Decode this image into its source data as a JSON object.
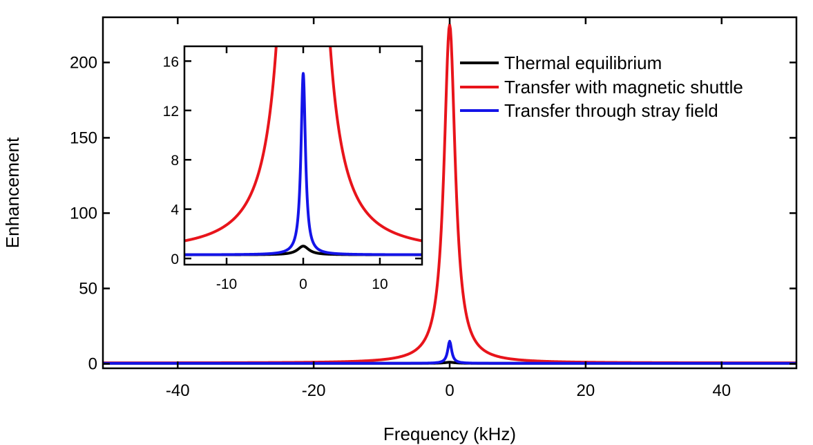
{
  "chart_data": {
    "main": {
      "type": "line",
      "xlabel": "Frequency (kHz)",
      "ylabel": "Enhancement",
      "xlim": [
        -51,
        51
      ],
      "ylim": [
        -3,
        230
      ],
      "xticks": [
        -40,
        -20,
        0,
        20,
        40
      ],
      "xtick_labels": [
        "-40",
        "-20",
        "0",
        "20",
        "40"
      ],
      "yticks": [
        0,
        50,
        100,
        150,
        200
      ],
      "ytick_labels": [
        "0",
        "50",
        "100",
        "150",
        "200"
      ],
      "series": [
        {
          "name": "Thermal equilibrium",
          "color": "#000000",
          "peak": 1.0,
          "gamma": 0.9,
          "base": 0.3
        },
        {
          "name": "Transfer with magnetic shuttle",
          "color": "#e8141b",
          "peak": 225,
          "gamma": 1.0,
          "base": 0.5
        },
        {
          "name": "Transfer through stray field",
          "color": "#1414e8",
          "peak": 15,
          "gamma": 0.35,
          "base": 0.3
        }
      ],
      "legend_position": "top-right"
    },
    "inset": {
      "type": "line",
      "xlim": [
        -15.5,
        15.5
      ],
      "ylim": [
        -0.5,
        17.2
      ],
      "xticks": [
        -10,
        0,
        10
      ],
      "xtick_labels": [
        "-10",
        "0",
        "10"
      ],
      "yticks": [
        0,
        4,
        8,
        12,
        16
      ],
      "ytick_labels": [
        "0",
        "4",
        "8",
        "12",
        "16"
      ],
      "series": [
        {
          "name": "Thermal equilibrium",
          "color": "#000000",
          "peak": 1.0,
          "gamma": 0.9,
          "base": 0.3
        },
        {
          "name": "Transfer with magnetic shuttle",
          "color": "#e8141b",
          "peak": 225,
          "gamma": 1.0,
          "base": 0.5
        },
        {
          "name": "Transfer through stray field",
          "color": "#1414e8",
          "peak": 15,
          "gamma": 0.35,
          "base": 0.3
        }
      ]
    }
  }
}
